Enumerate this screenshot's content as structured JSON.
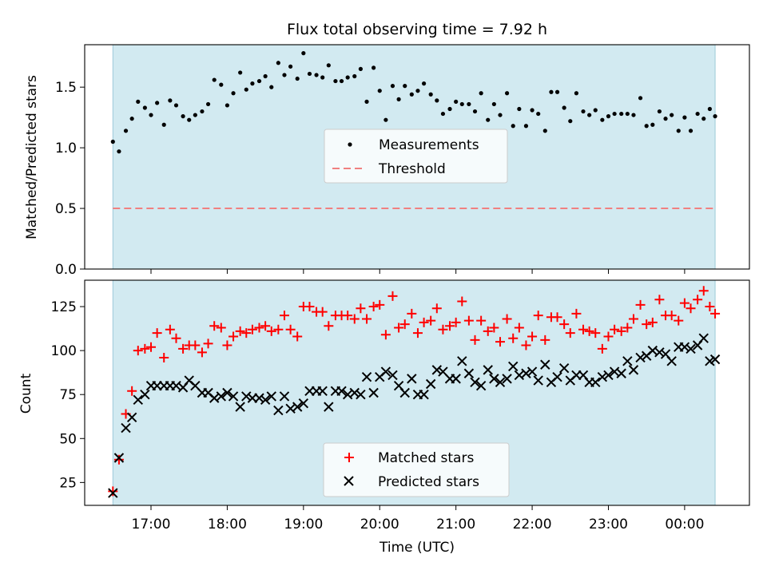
{
  "title": "Flux total observing time = 7.92 h",
  "colors": {
    "shade": "#add8e6",
    "threshold": "#f08080",
    "matched": "#ff0000",
    "predicted": "#000000",
    "measure": "#000000"
  },
  "chart_data": [
    {
      "type": "scatter",
      "panel": "top",
      "ylabel": "Matched/Predicted stars",
      "ylim": [
        0,
        1.85
      ],
      "yticks": [
        0,
        0.5,
        1.0,
        1.5
      ],
      "ytick_labels": [
        "0.0",
        "0.5",
        "1.0",
        "1.5"
      ],
      "xlim": [
        16.13,
        24.85
      ],
      "shaded_span": [
        16.5,
        24.4
      ],
      "threshold": 0.5,
      "legend": {
        "position": "center",
        "entries": [
          "Measurements",
          "Threshold"
        ]
      },
      "series": [
        {
          "name": "Measurements",
          "x": [
            16.5,
            16.58,
            16.67,
            16.75,
            16.83,
            16.92,
            17.0,
            17.08,
            17.17,
            17.25,
            17.33,
            17.42,
            17.5,
            17.58,
            17.67,
            17.75,
            17.83,
            17.92,
            18.0,
            18.08,
            18.17,
            18.25,
            18.33,
            18.42,
            18.5,
            18.58,
            18.67,
            18.75,
            18.83,
            18.92,
            19.0,
            19.08,
            19.17,
            19.25,
            19.33,
            19.42,
            19.5,
            19.58,
            19.67,
            19.75,
            19.83,
            19.92,
            20.0,
            20.08,
            20.17,
            20.25,
            20.33,
            20.42,
            20.5,
            20.58,
            20.67,
            20.75,
            20.83,
            20.92,
            21.0,
            21.08,
            21.17,
            21.25,
            21.33,
            21.42,
            21.5,
            21.58,
            21.67,
            21.75,
            21.83,
            21.92,
            22.0,
            22.08,
            22.17,
            22.25,
            22.33,
            22.42,
            22.5,
            22.58,
            22.67,
            22.75,
            22.83,
            22.92,
            23.0,
            23.08,
            23.17,
            23.25,
            23.33,
            23.42,
            23.5,
            23.58,
            23.67,
            23.75,
            23.83,
            23.92,
            24.0,
            24.08,
            24.17,
            24.25,
            24.33,
            24.4
          ],
          "y": [
            1.05,
            0.97,
            1.14,
            1.24,
            1.38,
            1.33,
            1.27,
            1.37,
            1.19,
            1.39,
            1.35,
            1.26,
            1.23,
            1.27,
            1.3,
            1.36,
            1.56,
            1.52,
            1.35,
            1.45,
            1.62,
            1.48,
            1.53,
            1.55,
            1.59,
            1.5,
            1.7,
            1.6,
            1.67,
            1.57,
            1.78,
            1.61,
            1.6,
            1.58,
            1.68,
            1.55,
            1.55,
            1.58,
            1.59,
            1.65,
            1.38,
            1.66,
            1.47,
            1.23,
            1.51,
            1.4,
            1.51,
            1.44,
            1.47,
            1.53,
            1.44,
            1.39,
            1.28,
            1.32,
            1.38,
            1.36,
            1.36,
            1.3,
            1.45,
            1.23,
            1.36,
            1.27,
            1.45,
            1.18,
            1.32,
            1.18,
            1.31,
            1.28,
            1.14,
            1.46,
            1.46,
            1.33,
            1.22,
            1.45,
            1.3,
            1.27,
            1.31,
            1.23,
            1.26,
            1.28,
            1.28,
            1.28,
            1.27,
            1.41,
            1.18,
            1.19,
            1.3,
            1.24,
            1.27,
            1.14,
            1.25,
            1.14,
            1.28,
            1.24,
            1.32,
            1.26
          ]
        }
      ]
    },
    {
      "type": "scatter",
      "panel": "bottom",
      "xlabel": "Time (UTC)",
      "ylabel": "Count",
      "ylim": [
        12,
        140
      ],
      "yticks": [
        25,
        50,
        75,
        100,
        125
      ],
      "ytick_labels": [
        "25",
        "50",
        "75",
        "100",
        "125"
      ],
      "xlim": [
        16.13,
        24.85
      ],
      "xticks": [
        17,
        18,
        19,
        20,
        21,
        22,
        23,
        24
      ],
      "xtick_labels": [
        "17:00",
        "18:00",
        "19:00",
        "20:00",
        "21:00",
        "22:00",
        "23:00",
        "00:00"
      ],
      "shaded_span": [
        16.5,
        24.4
      ],
      "legend": {
        "position": "lower center",
        "entries": [
          "Matched stars",
          "Predicted stars"
        ]
      },
      "series": [
        {
          "name": "Matched stars",
          "x": [
            16.5,
            16.58,
            16.67,
            16.75,
            16.83,
            16.92,
            17.0,
            17.08,
            17.17,
            17.25,
            17.33,
            17.42,
            17.5,
            17.58,
            17.67,
            17.75,
            17.83,
            17.92,
            18.0,
            18.08,
            18.17,
            18.25,
            18.33,
            18.42,
            18.5,
            18.58,
            18.67,
            18.75,
            18.83,
            18.92,
            19.0,
            19.08,
            19.17,
            19.25,
            19.33,
            19.42,
            19.5,
            19.58,
            19.67,
            19.75,
            19.83,
            19.92,
            20.0,
            20.08,
            20.17,
            20.25,
            20.33,
            20.42,
            20.5,
            20.58,
            20.67,
            20.75,
            20.83,
            20.92,
            21.0,
            21.08,
            21.17,
            21.25,
            21.33,
            21.42,
            21.5,
            21.58,
            21.67,
            21.75,
            21.83,
            21.92,
            22.0,
            22.08,
            22.17,
            22.25,
            22.33,
            22.42,
            22.5,
            22.58,
            22.67,
            22.75,
            22.83,
            22.92,
            23.0,
            23.08,
            23.17,
            23.25,
            23.33,
            23.42,
            23.5,
            23.58,
            23.67,
            23.75,
            23.83,
            23.92,
            24.0,
            24.08,
            24.17,
            24.25,
            24.33,
            24.4
          ],
          "y": [
            20,
            38,
            64,
            77,
            100,
            101,
            102,
            110,
            96,
            112,
            107,
            101,
            103,
            103,
            99,
            104,
            114,
            113,
            103,
            108,
            111,
            110,
            112,
            113,
            114,
            111,
            112,
            120,
            112,
            108,
            125,
            125,
            122,
            122,
            114,
            120,
            120,
            120,
            118,
            124,
            118,
            125,
            126,
            109,
            131,
            113,
            115,
            121,
            110,
            116,
            117,
            124,
            112,
            114,
            116,
            128,
            117,
            106,
            117,
            111,
            113,
            105,
            118,
            107,
            113,
            103,
            108,
            120,
            106,
            119,
            119,
            115,
            110,
            121,
            112,
            111,
            110,
            101,
            108,
            112,
            111,
            113,
            118,
            126,
            115,
            116,
            129,
            120,
            120,
            117,
            127,
            124,
            129,
            134,
            125,
            121
          ]
        },
        {
          "name": "Predicted stars",
          "x": [
            16.5,
            16.58,
            16.67,
            16.75,
            16.83,
            16.92,
            17.0,
            17.08,
            17.17,
            17.25,
            17.33,
            17.42,
            17.5,
            17.58,
            17.67,
            17.75,
            17.83,
            17.92,
            18.0,
            18.08,
            18.17,
            18.25,
            18.33,
            18.42,
            18.5,
            18.58,
            18.67,
            18.75,
            18.83,
            18.92,
            19.0,
            19.08,
            19.17,
            19.25,
            19.33,
            19.42,
            19.5,
            19.58,
            19.67,
            19.75,
            19.83,
            19.92,
            20.0,
            20.08,
            20.17,
            20.25,
            20.33,
            20.42,
            20.5,
            20.58,
            20.67,
            20.75,
            20.83,
            20.92,
            21.0,
            21.08,
            21.17,
            21.25,
            21.33,
            21.42,
            21.5,
            21.58,
            21.67,
            21.75,
            21.83,
            21.92,
            22.0,
            22.08,
            22.17,
            22.25,
            22.33,
            22.42,
            22.5,
            22.58,
            22.67,
            22.75,
            22.83,
            22.92,
            23.0,
            23.08,
            23.17,
            23.25,
            23.33,
            23.42,
            23.5,
            23.58,
            23.67,
            23.75,
            23.83,
            23.92,
            24.0,
            24.08,
            24.17,
            24.25,
            24.33,
            24.4
          ],
          "y": [
            19,
            39,
            56,
            62,
            72,
            75,
            80,
            80,
            80,
            80,
            80,
            79,
            83,
            80,
            76,
            76,
            73,
            74,
            76,
            74,
            68,
            74,
            73,
            73,
            72,
            74,
            66,
            74,
            67,
            68,
            70,
            77,
            77,
            77,
            68,
            77,
            77,
            75,
            76,
            75,
            85,
            76,
            85,
            88,
            86,
            80,
            76,
            84,
            75,
            75,
            81,
            89,
            88,
            84,
            84,
            94,
            87,
            82,
            80,
            89,
            84,
            82,
            84,
            91,
            86,
            87,
            88,
            83,
            92,
            82,
            85,
            90,
            83,
            86,
            86,
            82,
            82,
            85,
            86,
            88,
            87,
            94,
            89,
            96,
            97,
            100,
            99,
            98,
            94,
            102,
            102,
            101,
            103,
            107,
            94,
            95
          ]
        }
      ]
    }
  ]
}
